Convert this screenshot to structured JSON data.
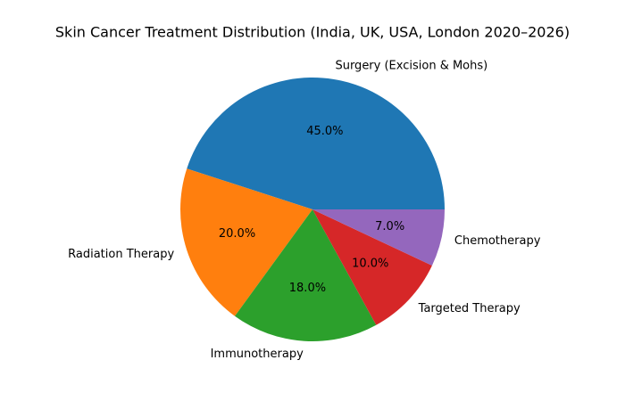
{
  "chart_data": {
    "type": "pie",
    "title": "Skin Cancer Treatment Distribution (India, UK, USA, London 2020–2026)",
    "categories": [
      "Surgery (Excision & Mohs)",
      "Radiation Therapy",
      "Immunotherapy",
      "Targeted Therapy",
      "Chemotherapy"
    ],
    "values": [
      45,
      20,
      18,
      10,
      7
    ],
    "value_labels": [
      "45.0%",
      "20.0%",
      "18.0%",
      "10.0%",
      "7.0%"
    ],
    "colors": [
      "#1f77b4",
      "#ff7f0e",
      "#2ca02c",
      "#d62728",
      "#9467bd"
    ]
  }
}
